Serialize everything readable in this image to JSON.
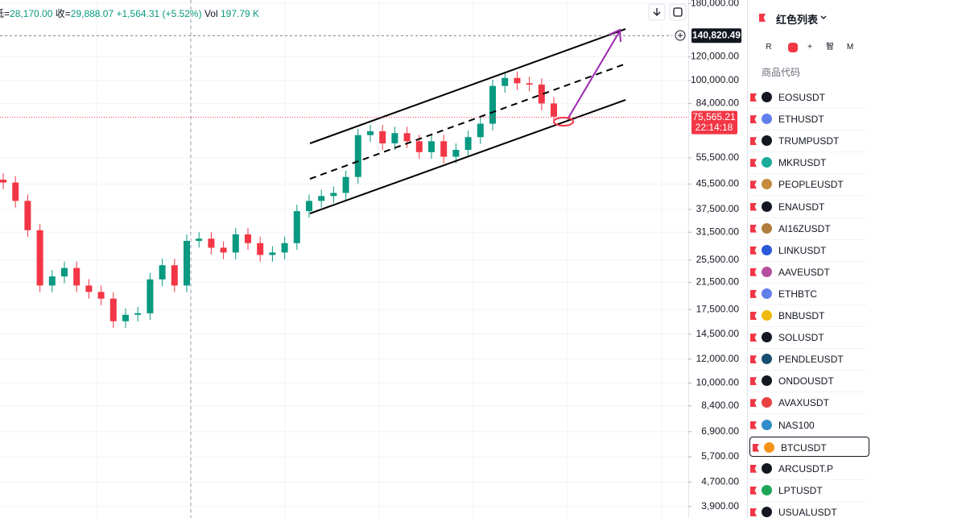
{
  "chart_data": {
    "type": "candlestick",
    "header": {
      "low_label": "低=",
      "low": "28,170.00",
      "close_label": "收=",
      "close": "29,888.07",
      "change": "+1,564.31",
      "change_pct": "(+5.52%)",
      "vol_label": "Vol",
      "vol": "197.79 K"
    },
    "open": [
      47000,
      46000,
      40000,
      32000,
      21000,
      22500,
      24000,
      21000,
      20000,
      19000,
      16000,
      16800,
      17000,
      22000,
      24500,
      21000,
      29500,
      30000,
      28000,
      27000,
      31000,
      29000,
      26500,
      27000,
      29000,
      37000,
      40000,
      41500,
      42500,
      48000,
      66000,
      68000,
      62000,
      67000,
      63000,
      58000,
      63000,
      56000,
      59000,
      65000,
      72000,
      96000,
      102000,
      98000,
      97000,
      84000
    ],
    "high": [
      49350,
      48300,
      42000,
      33600,
      23625,
      25200,
      25200,
      22050,
      21000,
      19950,
      17640,
      17850,
      23100,
      25725,
      25725,
      30975,
      31500,
      31500,
      29400,
      32550,
      32550,
      30450,
      28350,
      30450,
      38850,
      42000,
      43575,
      44625,
      50400,
      69300,
      71400,
      71400,
      70350,
      70350,
      66150,
      66150,
      66150,
      61950,
      68250,
      75600,
      100800,
      107100,
      107100,
      102900,
      101850,
      88200
    ],
    "low": [
      43700,
      38000,
      30400,
      19950,
      19950,
      21375,
      19950,
      19000,
      18050,
      15200,
      15200,
      15960,
      16150,
      20900,
      19950,
      19950,
      28025,
      26600,
      25650,
      25650,
      27550,
      25175,
      25175,
      25650,
      27550,
      35150,
      38000,
      39425,
      40375,
      45600,
      62700,
      58900,
      58900,
      59850,
      55100,
      55100,
      53200,
      53200,
      56050,
      61750,
      68400,
      91200,
      93100,
      92150,
      79800,
      72200
    ],
    "close": [
      46000,
      40000,
      32000,
      21000,
      22500,
      24000,
      21000,
      20000,
      19000,
      16000,
      16800,
      17000,
      22000,
      24500,
      21000,
      29500,
      30000,
      28000,
      27000,
      31000,
      29000,
      26500,
      27000,
      29000,
      37000,
      40000,
      41500,
      42500,
      48000,
      66000,
      68000,
      62000,
      67000,
      63000,
      58000,
      63000,
      56000,
      59000,
      65000,
      72000,
      96000,
      102000,
      98000,
      97000,
      84000,
      76000
    ],
    "up_color": "#089981",
    "down_color": "#f23645",
    "log_scale": true,
    "grid": true,
    "ylim": [
      3575,
      184700
    ],
    "yticks": [
      {
        "value": 180000,
        "label": "180,000.00"
      },
      {
        "value": 120000,
        "label": "120,000.00"
      },
      {
        "value": 100000,
        "label": "100,000.00"
      },
      {
        "value": 84000,
        "label": "84,000.00"
      },
      {
        "value": 55500,
        "label": "55,500.00"
      },
      {
        "value": 45500,
        "label": "45,500.00"
      },
      {
        "value": 37500,
        "label": "37,500.00"
      },
      {
        "value": 31500,
        "label": "31,500.00"
      },
      {
        "value": 25500,
        "label": "25,500.00"
      },
      {
        "value": 21500,
        "label": "21,500.00"
      },
      {
        "value": 17500,
        "label": "17,500.00"
      },
      {
        "value": 14500,
        "label": "14,500.00"
      },
      {
        "value": 12000,
        "label": "12,000.00"
      },
      {
        "value": 10000,
        "label": "10,000.00"
      },
      {
        "value": 8400,
        "label": "8,400.00"
      },
      {
        "value": 6900,
        "label": "6,900.00"
      },
      {
        "value": 5700,
        "label": "5,700.00"
      },
      {
        "value": 4700,
        "label": "4,700.00"
      },
      {
        "value": 3900,
        "label": "3,900.00"
      }
    ],
    "target_price": {
      "value": 140820.49,
      "label": "140,820.49"
    },
    "last_price": {
      "value": 75565.21,
      "label": "75,565.21"
    },
    "countdown": "22:14:18"
  },
  "watchlist": {
    "title": "红色列表",
    "buttons": [
      "R",
      "+",
      "智",
      "M"
    ],
    "column_header": "商品代码",
    "symbols": [
      "EOSUSDT",
      "ETHUSDT",
      "TRUMPUSDT",
      "MKRUSDT",
      "PEOPLEUSDT",
      "ENAUSDT",
      "AI16ZUSDT",
      "LINKUSDT",
      "AAVEUSDT",
      "ETHBTC",
      "BNBUSDT",
      "SOLUSDT",
      "PENDLEUSDT",
      "ONDOUSDT",
      "AVAXUSDT",
      "NAS100",
      "BTCUSDT",
      "ARCUSDT.P",
      "LPTUSDT",
      "USUALUSDT"
    ],
    "selected_index": 16
  }
}
